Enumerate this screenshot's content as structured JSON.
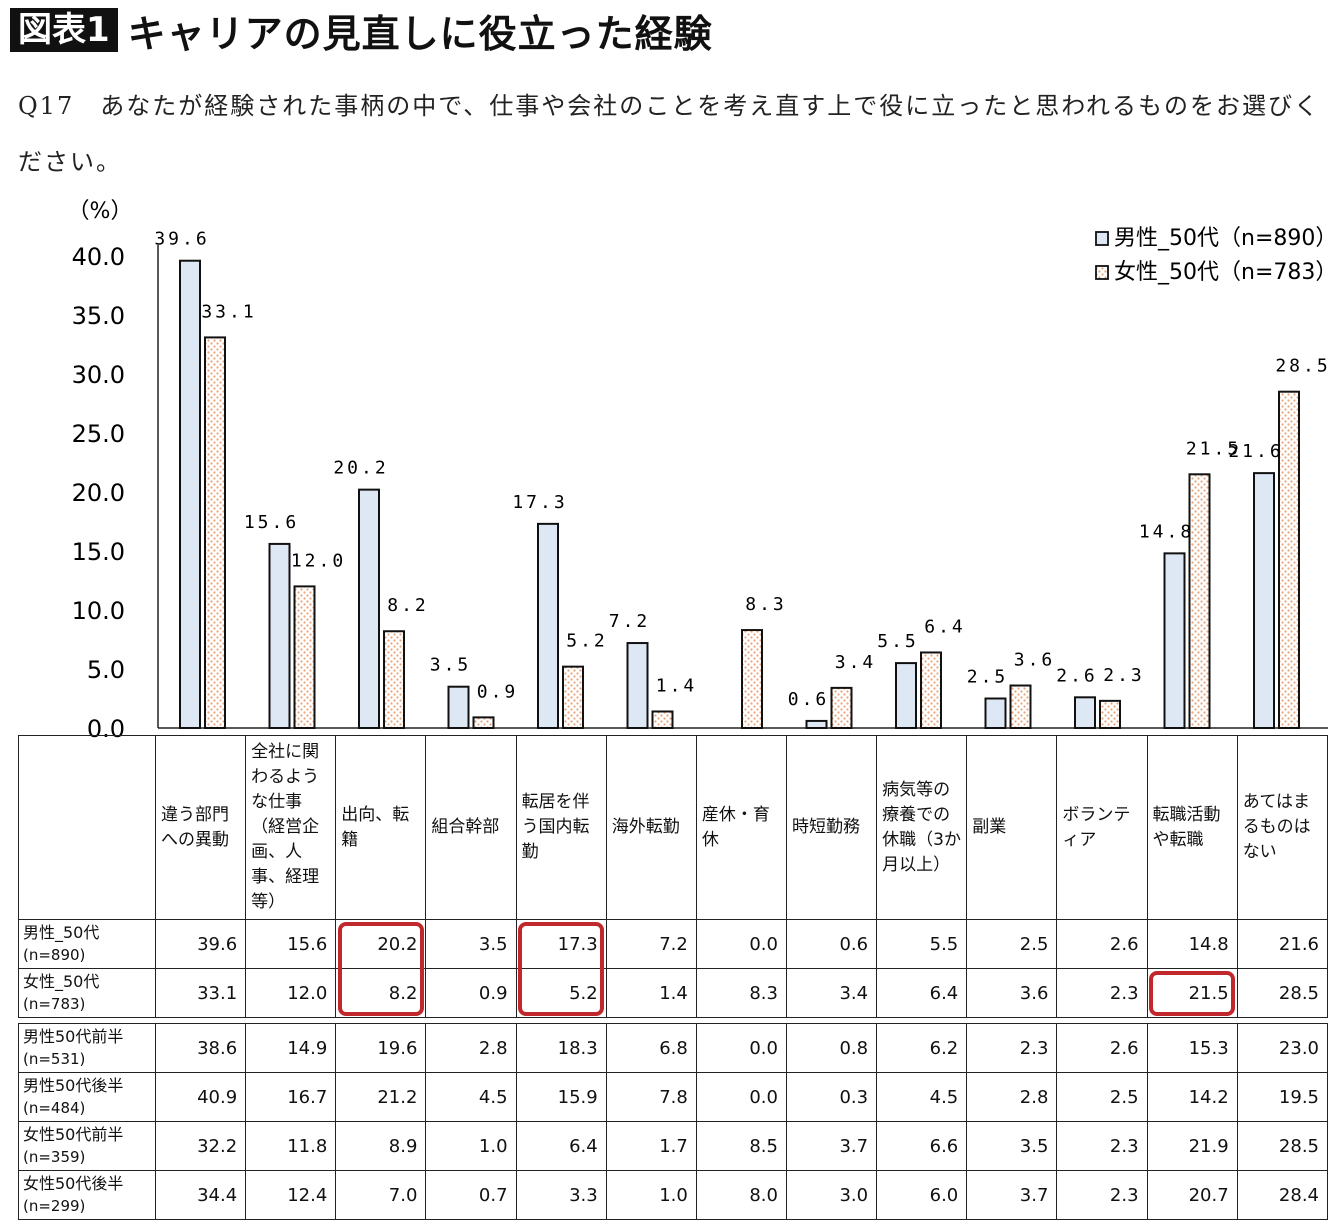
{
  "header": {
    "badge": "図表1",
    "title": "キャリアの見直しに役立った経験",
    "question": "Q17　あなたが経験された事柄の中で、仕事や会社のことを考え直す上で役に立ったと思われるものをお選びください。"
  },
  "chart_data": {
    "type": "bar",
    "unit_label": "（%）",
    "ylim": [
      0,
      40
    ],
    "yticks": [
      "0.0",
      "5.0",
      "10.0",
      "15.0",
      "20.0",
      "25.0",
      "30.0",
      "35.0",
      "40.0"
    ],
    "categories": [
      "違う部門への異動",
      "全社に関わるような仕事（経営企画、人事、経理等）",
      "出向、転籍",
      "組合幹部",
      "転居を伴う国内転勤",
      "海外転勤",
      "産休・育休",
      "時短勤務",
      "病気等の療養での休職（3か月以上）",
      "副業",
      "ボランティア",
      "転職活動や転職",
      "あてはまるものはない"
    ],
    "series": [
      {
        "name": "男性_50代（n=890）",
        "values": [
          39.6,
          15.6,
          20.2,
          3.5,
          17.3,
          7.2,
          0.0,
          0.6,
          5.5,
          2.5,
          2.6,
          14.8,
          21.6
        ],
        "labels": [
          "39.6",
          "15.6",
          "20.2",
          "3.5",
          "17.3",
          "7.2",
          "",
          "0.6",
          "5.5",
          "2.5",
          "2.6",
          "14.8",
          "21.6"
        ],
        "color": "#dde8f4"
      },
      {
        "name": "女性_50代（n=783）",
        "values": [
          33.1,
          12.0,
          8.2,
          0.9,
          5.2,
          1.4,
          8.3,
          3.4,
          6.4,
          3.6,
          2.3,
          21.5,
          28.5
        ],
        "labels": [
          "33.1",
          "12.0",
          "8.2",
          "0.9",
          "5.2",
          "1.4",
          "8.3",
          "3.4",
          "6.4",
          "3.6",
          "2.3",
          "21.5",
          "28.5"
        ],
        "color": "#f7d2b8"
      }
    ],
    "legend_position": "top-right",
    "grid": false
  },
  "table": {
    "headers": [
      "違う部門への異動",
      "全社に関わるような仕事（経営企画、人事、経理等）",
      "出向、転籍",
      "組合幹部",
      "転居を伴う国内転勤",
      "海外転勤",
      "産休・育休",
      "時短勤務",
      "病気等の療養での休職（3か月以上）",
      "副業",
      "ボランティア",
      "転職活動や転職",
      "あてはまるものはない"
    ],
    "group1": [
      {
        "label": "男性_50代",
        "n": "(n=890)",
        "values": [
          "39.6",
          "15.6",
          "20.2",
          "3.5",
          "17.3",
          "7.2",
          "0.0",
          "0.6",
          "5.5",
          "2.5",
          "2.6",
          "14.8",
          "21.6"
        ]
      },
      {
        "label": "女性_50代",
        "n": "(n=783)",
        "values": [
          "33.1",
          "12.0",
          "8.2",
          "0.9",
          "5.2",
          "1.4",
          "8.3",
          "3.4",
          "6.4",
          "3.6",
          "2.3",
          "21.5",
          "28.5"
        ]
      }
    ],
    "group2": [
      {
        "label": "男性50代前半",
        "n": "(n=531)",
        "values": [
          "38.6",
          "14.9",
          "19.6",
          "2.8",
          "18.3",
          "6.8",
          "0.0",
          "0.8",
          "6.2",
          "2.3",
          "2.6",
          "15.3",
          "23.0"
        ]
      },
      {
        "label": "男性50代後半",
        "n": "(n=484)",
        "values": [
          "40.9",
          "16.7",
          "21.2",
          "4.5",
          "15.9",
          "7.8",
          "0.0",
          "0.3",
          "4.5",
          "2.8",
          "2.5",
          "14.2",
          "19.5"
        ]
      },
      {
        "label": "女性50代前半",
        "n": "(n=359)",
        "values": [
          "32.2",
          "11.8",
          "8.9",
          "1.0",
          "6.4",
          "1.7",
          "8.5",
          "3.7",
          "6.6",
          "3.5",
          "2.3",
          "21.9",
          "28.5"
        ]
      },
      {
        "label": "女性50代後半",
        "n": "(n=299)",
        "values": [
          "34.4",
          "12.4",
          "7.0",
          "0.7",
          "3.3",
          "1.0",
          "8.0",
          "3.0",
          "6.0",
          "3.7",
          "2.3",
          "20.7",
          "28.4"
        ]
      }
    ]
  },
  "highlight_color": "#c0282d"
}
